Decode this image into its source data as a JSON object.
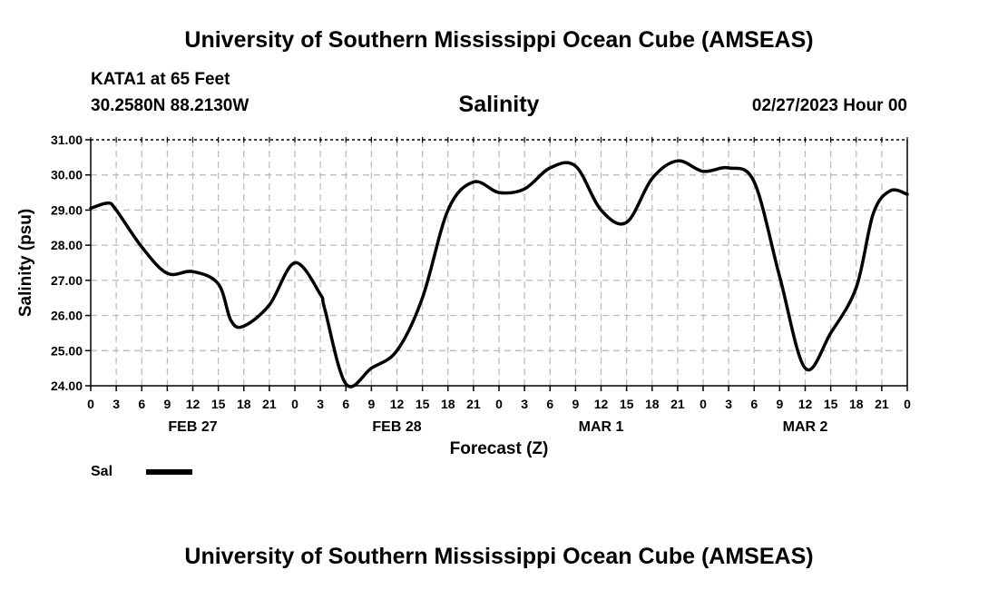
{
  "header": {
    "title": "University of Southern Mississippi Ocean Cube (AMSEAS)",
    "station": "KATA1 at 65 Feet",
    "coords": "30.2580N  88.2130W",
    "forecast_time": "02/27/2023 Hour 00"
  },
  "footer": {
    "title": "University of Southern Mississippi Ocean Cube (AMSEAS)"
  },
  "legend": {
    "label": "Sal"
  },
  "chart_data": {
    "type": "line",
    "title": "Salinity",
    "xlabel": "Forecast (Z)",
    "ylabel": "Salinity (psu)",
    "xlim": [
      0,
      96
    ],
    "ylim": [
      24.0,
      31.0
    ],
    "grid": true,
    "legend_position": "bottom-left",
    "y_ticks": [
      "24.00",
      "25.00",
      "26.00",
      "27.00",
      "28.00",
      "29.00",
      "30.00",
      "31.00"
    ],
    "x_hours": [
      0,
      3,
      6,
      9,
      12,
      15,
      18,
      21,
      24,
      27,
      30,
      33,
      36,
      39,
      42,
      45,
      48,
      51,
      54,
      57,
      60,
      63,
      66,
      69,
      72,
      75,
      78,
      81,
      84,
      87,
      90,
      93,
      96
    ],
    "x_tick_labels": [
      "0",
      "3",
      "6",
      "9",
      "12",
      "15",
      "18",
      "21",
      "0",
      "3",
      "6",
      "9",
      "12",
      "15",
      "18",
      "21",
      "0",
      "3",
      "6",
      "9",
      "12",
      "15",
      "18",
      "21",
      "0",
      "3",
      "6",
      "9",
      "12",
      "15",
      "18",
      "21",
      "0"
    ],
    "day_labels": [
      {
        "hour": 12,
        "label": "FEB 27"
      },
      {
        "hour": 36,
        "label": "FEB 28"
      },
      {
        "hour": 60,
        "label": "MAR 1"
      },
      {
        "hour": 84,
        "label": "MAR 2"
      }
    ],
    "series": [
      {
        "name": "Sal",
        "color": "#000000",
        "x": [
          0,
          2,
          3,
          6,
          9,
          12,
          15,
          16.5,
          18,
          21,
          24,
          27,
          27.5,
          30,
          33,
          36,
          39,
          42,
          45,
          48,
          51,
          54,
          57,
          60,
          63,
          66,
          69,
          72,
          75,
          78,
          81,
          84,
          87,
          90,
          92,
          94,
          96
        ],
        "values": [
          29.05,
          29.2,
          29.0,
          27.95,
          27.2,
          27.25,
          26.9,
          25.85,
          25.7,
          26.3,
          27.5,
          26.6,
          26.2,
          24.05,
          24.5,
          25.0,
          26.5,
          29.0,
          29.8,
          29.5,
          29.6,
          30.2,
          30.25,
          29.0,
          28.65,
          29.9,
          30.4,
          30.1,
          30.2,
          29.8,
          27.1,
          24.5,
          25.5,
          26.8,
          28.9,
          29.55,
          29.45
        ]
      }
    ]
  }
}
